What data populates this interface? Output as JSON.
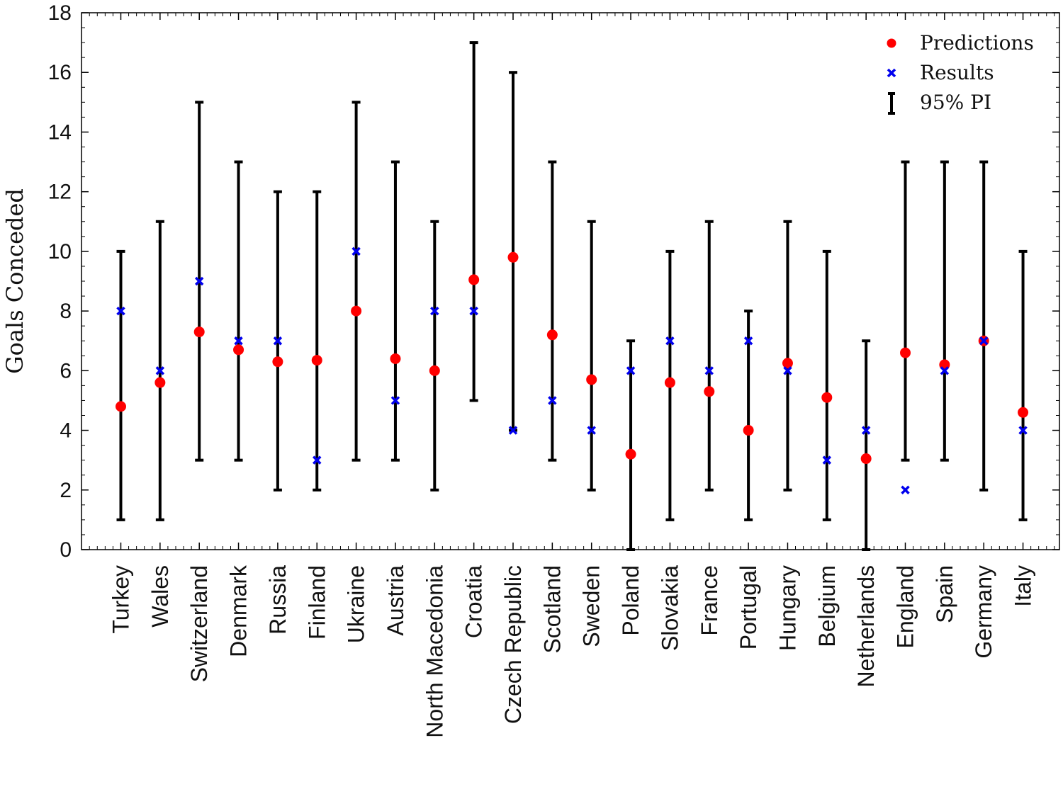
{
  "chart_data": {
    "type": "scatter",
    "title": "",
    "xlabel": "",
    "ylabel": "Goals Conceded",
    "ylim": [
      0,
      18
    ],
    "yticks": [
      0,
      2,
      4,
      6,
      8,
      10,
      12,
      14,
      16,
      18
    ],
    "grid": false,
    "legend_position": "top-right",
    "categories": [
      "Turkey",
      "Wales",
      "Switzerland",
      "Denmark",
      "Russia",
      "Finland",
      "Ukraine",
      "Austria",
      "North Macedonia",
      "Croatia",
      "Czech Republic",
      "Scotland",
      "Sweden",
      "Poland",
      "Slovakia",
      "France",
      "Portugal",
      "Hungary",
      "Belgium",
      "Netherlands",
      "England",
      "Spain",
      "Germany",
      "Italy"
    ],
    "series": [
      {
        "name": "Predictions",
        "marker": "circle",
        "color": "#ff0000",
        "values": [
          4.8,
          5.6,
          7.3,
          6.7,
          6.3,
          6.35,
          8.0,
          6.4,
          6.0,
          9.05,
          9.8,
          7.2,
          5.7,
          3.2,
          5.6,
          5.3,
          4.0,
          6.25,
          5.1,
          3.05,
          6.6,
          6.2,
          7.0,
          4.6
        ]
      },
      {
        "name": "Results",
        "marker": "x",
        "color": "#0000ee",
        "values": [
          8,
          6,
          9,
          7,
          7,
          3,
          10,
          5,
          8,
          8,
          4,
          5,
          4,
          6,
          7,
          6,
          7,
          6,
          3,
          4,
          2,
          6,
          7,
          4
        ]
      },
      {
        "name": "95% PI",
        "marker": "errorbar",
        "color": "#000000",
        "lower": [
          1,
          1,
          3,
          3,
          2,
          2,
          3,
          3,
          2,
          5,
          4,
          3,
          2,
          0,
          1,
          2,
          1,
          2,
          1,
          0,
          3,
          3,
          2,
          1
        ],
        "upper": [
          10,
          11,
          15,
          13,
          12,
          12,
          15,
          13,
          11,
          17,
          16,
          13,
          11,
          7,
          10,
          11,
          8,
          11,
          10,
          7,
          13,
          13,
          13,
          10
        ]
      }
    ]
  }
}
